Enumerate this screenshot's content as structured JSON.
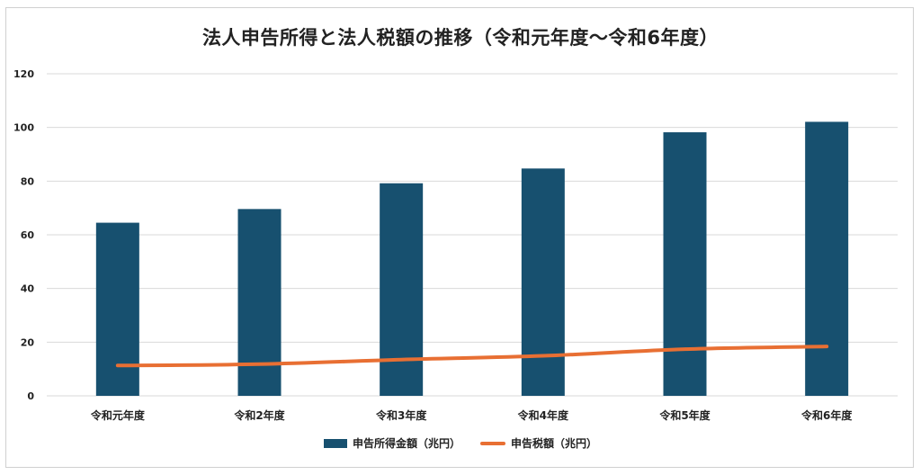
{
  "chart_data": {
    "type": "bar",
    "title": "法人申告所得と法人税額の推移（令和元年度〜令和6年度）",
    "categories": [
      "令和元年度",
      "令和2年度",
      "令和3年度",
      "令和4年度",
      "令和5年度",
      "令和6年度"
    ],
    "series": [
      {
        "name": "申告所得金額（兆円）",
        "type": "bar",
        "color": "#17506f",
        "values": [
          64.5,
          69.6,
          79.2,
          84.7,
          98.2,
          102.1
        ]
      },
      {
        "name": "申告税額（兆円）",
        "type": "line",
        "color": "#e86f33",
        "values": [
          11.3,
          11.8,
          13.5,
          14.9,
          17.4,
          18.4
        ]
      }
    ],
    "ylim": [
      0,
      120
    ],
    "yticks": [
      0,
      20,
      40,
      60,
      80,
      100,
      120
    ],
    "grid": true,
    "legend": "bottom"
  }
}
